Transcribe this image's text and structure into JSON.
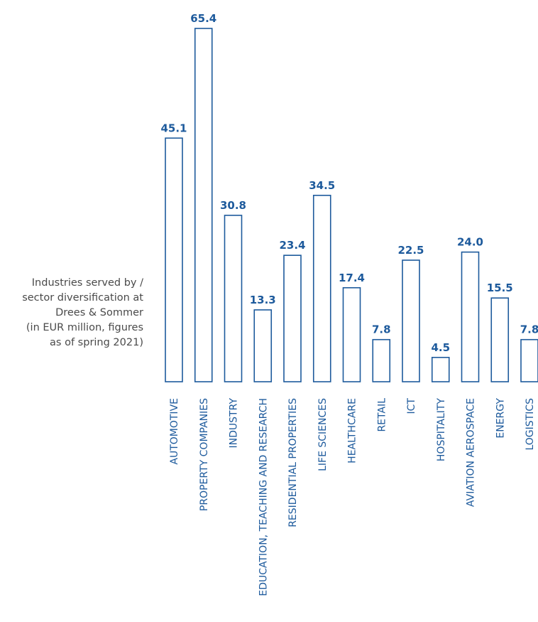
{
  "caption": {
    "lines": [
      "Industries served by /",
      "sector diversification at",
      "Drees & Sommer",
      "(in EUR million, figures",
      "as of spring 2021)"
    ]
  },
  "colors": {
    "bar_stroke": "#1d5a9c",
    "value_label": "#1d5a9c",
    "category_label": "#1d5a9c",
    "caption_text": "#4a4a4a"
  },
  "chart_data": {
    "type": "bar",
    "title": "Industries served by / sector diversification at Drees & Sommer (in EUR million, figures as of spring 2021)",
    "categories": [
      "AUTOMOTIVE",
      "PROPERTY COMPANIES",
      "INDUSTRY",
      "EDUCATION, TEACHING AND RESEARCH",
      "RESIDENTIAL PROPERTIES",
      "LIFE SCIENCES",
      "HEALTHCARE",
      "RETAIL",
      "ICT",
      "HOSPITALITY",
      "AVIATION AEROSPACE",
      "ENERGY",
      "LOGISTICS"
    ],
    "values": [
      45.1,
      65.4,
      30.8,
      13.3,
      23.4,
      34.5,
      17.4,
      7.8,
      22.5,
      4.5,
      24.0,
      15.5,
      7.8
    ],
    "value_labels": [
      "45.1",
      "65.4",
      "30.8",
      "13.3",
      "23.4",
      "34.5",
      "17.4",
      "7.8",
      "22.5",
      "4.5",
      "24.0",
      "15.5",
      "7.8"
    ],
    "ylim": [
      0,
      65.4
    ],
    "grid": false,
    "legend": "none"
  }
}
